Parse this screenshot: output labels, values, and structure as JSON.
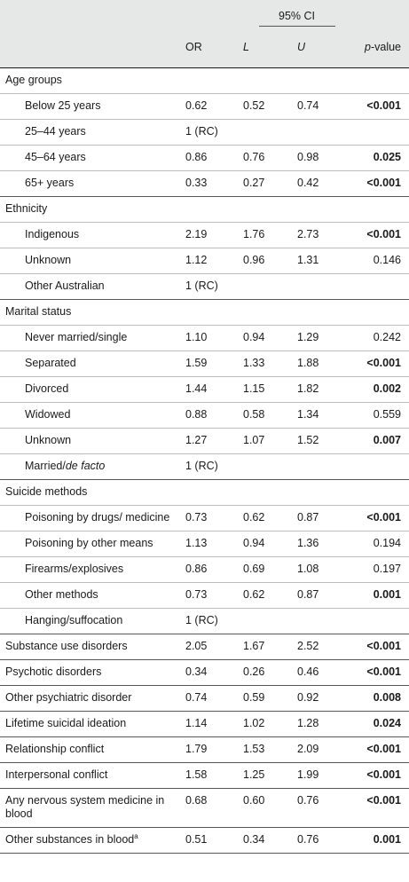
{
  "header": {
    "ci_label": "95% CI",
    "col_or": "OR",
    "col_l": "L",
    "col_u": "U",
    "col_p_prefix": "p",
    "col_p_suffix": "-value"
  },
  "rows": [
    {
      "kind": "group",
      "label": "Age groups"
    },
    {
      "kind": "sub",
      "label": "Below 25 years",
      "or": "0.62",
      "l": "0.52",
      "u": "0.74",
      "p": "<0.001",
      "bold": true
    },
    {
      "kind": "sub",
      "label": "25–44 years",
      "or": "1 (RC)",
      "l": "",
      "u": "",
      "p": "",
      "bold": false
    },
    {
      "kind": "sub",
      "label": "45–64 years",
      "or": "0.86",
      "l": "0.76",
      "u": "0.98",
      "p": "0.025",
      "bold": true
    },
    {
      "kind": "sub",
      "label": "65+ years",
      "or": "0.33",
      "l": "0.27",
      "u": "0.42",
      "p": "<0.001",
      "bold": true,
      "dark": true
    },
    {
      "kind": "group",
      "label": "Ethnicity"
    },
    {
      "kind": "sub",
      "label": "Indigenous",
      "or": "2.19",
      "l": "1.76",
      "u": "2.73",
      "p": "<0.001",
      "bold": true
    },
    {
      "kind": "sub",
      "label": "Unknown",
      "or": "1.12",
      "l": "0.96",
      "u": "1.31",
      "p": "0.146",
      "bold": false
    },
    {
      "kind": "sub",
      "label": "Other Australian",
      "or": "1 (RC)",
      "l": "",
      "u": "",
      "p": "",
      "bold": false,
      "dark": true
    },
    {
      "kind": "group",
      "label": "Marital status"
    },
    {
      "kind": "sub",
      "label": "Never married/single",
      "or": "1.10",
      "l": "0.94",
      "u": "1.29",
      "p": "0.242",
      "bold": false
    },
    {
      "kind": "sub",
      "label": "Separated",
      "or": "1.59",
      "l": "1.33",
      "u": "1.88",
      "p": "<0.001",
      "bold": true
    },
    {
      "kind": "sub",
      "label": "Divorced",
      "or": "1.44",
      "l": "1.15",
      "u": "1.82",
      "p": "0.002",
      "bold": true
    },
    {
      "kind": "sub",
      "label": "Widowed",
      "or": "0.88",
      "l": "0.58",
      "u": "1.34",
      "p": "0.559",
      "bold": false
    },
    {
      "kind": "sub",
      "label": "Unknown",
      "or": "1.27",
      "l": "1.07",
      "u": "1.52",
      "p": "0.007",
      "bold": true
    },
    {
      "kind": "sub",
      "label_prefix": "Married/",
      "label_italic": "de facto",
      "or": "1 (RC)",
      "l": "",
      "u": "",
      "p": "",
      "bold": false,
      "dark": true
    },
    {
      "kind": "group",
      "label": "Suicide methods"
    },
    {
      "kind": "sub",
      "label": "Poisoning by drugs/ medicine",
      "or": "0.73",
      "l": "0.62",
      "u": "0.87",
      "p": "<0.001",
      "bold": true
    },
    {
      "kind": "sub",
      "label": "Poisoning by other means",
      "or": "1.13",
      "l": "0.94",
      "u": "1.36",
      "p": "0.194",
      "bold": false
    },
    {
      "kind": "sub",
      "label": "Firearms/explosives",
      "or": "0.86",
      "l": "0.69",
      "u": "1.08",
      "p": "0.197",
      "bold": false
    },
    {
      "kind": "sub",
      "label": "Other methods",
      "or": "0.73",
      "l": "0.62",
      "u": "0.87",
      "p": "0.001",
      "bold": true
    },
    {
      "kind": "sub",
      "label": "Hanging/suffocation",
      "or": "1 (RC)",
      "l": "",
      "u": "",
      "p": "",
      "bold": false,
      "dark": true
    },
    {
      "kind": "main",
      "label": "Substance use disorders",
      "or": "2.05",
      "l": "1.67",
      "u": "2.52",
      "p": "<0.001",
      "bold": true,
      "dark": true
    },
    {
      "kind": "main",
      "label": "Psychotic disorders",
      "or": "0.34",
      "l": "0.26",
      "u": "0.46",
      "p": "<0.001",
      "bold": true,
      "dark": true
    },
    {
      "kind": "main",
      "label": "Other psychiatric disorder",
      "or": "0.74",
      "l": "0.59",
      "u": "0.92",
      "p": "0.008",
      "bold": true,
      "dark": true
    },
    {
      "kind": "main",
      "label": "Lifetime suicidal ideation",
      "or": "1.14",
      "l": "1.02",
      "u": "1.28",
      "p": "0.024",
      "bold": true,
      "dark": true
    },
    {
      "kind": "main",
      "label": "Relationship conflict",
      "or": "1.79",
      "l": "1.53",
      "u": "2.09",
      "p": "<0.001",
      "bold": true,
      "dark": true
    },
    {
      "kind": "main",
      "label": "Interpersonal conflict",
      "or": "1.58",
      "l": "1.25",
      "u": "1.99",
      "p": "<0.001",
      "bold": true,
      "dark": true
    },
    {
      "kind": "main",
      "label": "Any nervous system medicine in blood",
      "or": "0.68",
      "l": "0.60",
      "u": "0.76",
      "p": "<0.001",
      "bold": true,
      "dark": true
    },
    {
      "kind": "main",
      "label": "Other substances in blood",
      "sup": "a",
      "or": "0.51",
      "l": "0.34",
      "u": "0.76",
      "p": "0.001",
      "bold": true,
      "dark": true
    }
  ]
}
